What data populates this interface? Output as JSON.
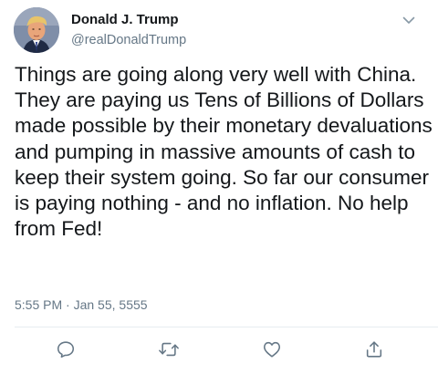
{
  "tweet": {
    "author": {
      "name": "Donald J. Trump",
      "handle": "@realDonaldTrump"
    },
    "text": "Things are going along very well with China. They are paying us Tens of Billions of Dollars made possible by their monetary devaluations and pumping in massive amounts of cash to keep their system going. So far our consumer is paying nothing - and no inflation. No help from Fed!",
    "time": "5:55 PM",
    "separator": "·",
    "date": "Jan 55, 5555"
  },
  "icons": {
    "menu": "chevron-down-icon",
    "reply": "reply-icon",
    "retweet": "retweet-icon",
    "like": "heart-icon",
    "share": "share-icon"
  },
  "colors": {
    "text": "#14171a",
    "secondary": "#657786",
    "divider": "#e6ecf0"
  }
}
